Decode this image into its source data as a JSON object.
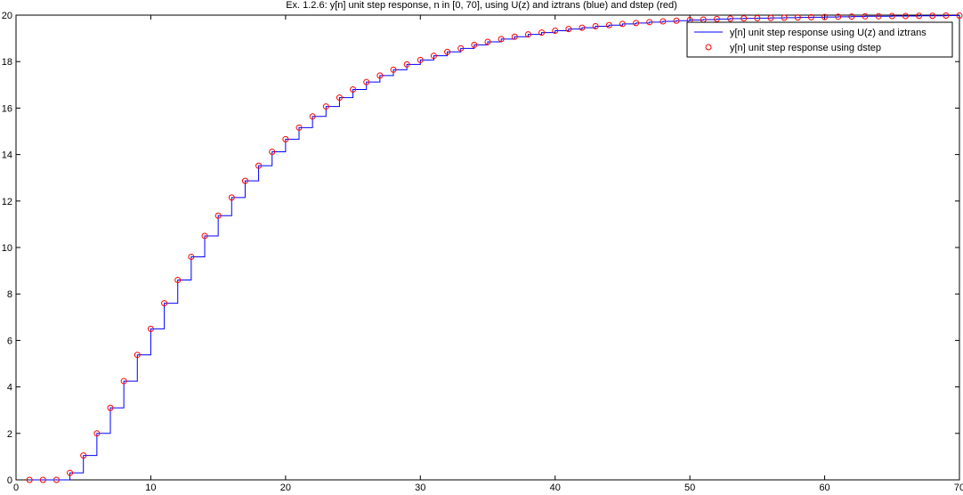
{
  "chart_data": {
    "type": "line",
    "title": "Ex. 1.2.6: y[n] unit step response, n in [0, 70], using U(z) and iztrans (blue) and dstep (red)",
    "xlabel": "",
    "ylabel": "",
    "xlim": [
      0,
      70
    ],
    "ylim": [
      0,
      20
    ],
    "xticks": [
      "0",
      "10",
      "20",
      "30",
      "40",
      "50",
      "60",
      "70"
    ],
    "yticks": [
      "0",
      "2",
      "4",
      "6",
      "8",
      "10",
      "12",
      "14",
      "16",
      "18",
      "20"
    ],
    "grid": false,
    "legend_position": "top-right",
    "series": [
      {
        "name": "y[n] unit step response using U(z) and iztrans",
        "style": "stairs",
        "color": "#0000ff",
        "x": [
          1,
          2,
          3,
          4,
          5,
          6,
          7,
          8,
          9,
          10,
          11,
          12,
          13,
          14,
          15,
          16,
          17,
          18,
          19,
          20,
          21,
          22,
          23,
          24,
          25,
          26,
          27,
          28,
          29,
          30,
          31,
          32,
          33,
          34,
          35,
          36,
          37,
          38,
          39,
          40,
          41,
          42,
          43,
          44,
          45,
          46,
          47,
          48,
          49,
          50,
          51,
          52,
          53,
          54,
          55,
          56,
          57,
          58,
          59,
          60,
          61,
          62,
          63,
          64,
          65,
          66,
          67,
          68,
          69,
          70
        ],
        "values": [
          0,
          0,
          0,
          0.3,
          1.05,
          2.0,
          3.1,
          4.25,
          5.38,
          6.5,
          7.6,
          8.6,
          9.6,
          10.5,
          11.37,
          12.15,
          12.87,
          13.52,
          14.12,
          14.66,
          15.16,
          15.64,
          16.07,
          16.45,
          16.8,
          17.12,
          17.4,
          17.65,
          17.88,
          18.07,
          18.25,
          18.42,
          18.57,
          18.72,
          18.85,
          18.97,
          19.07,
          19.17,
          19.25,
          19.33,
          19.4,
          19.46,
          19.52,
          19.57,
          19.62,
          19.66,
          19.7,
          19.73,
          19.76,
          19.79,
          19.81,
          19.83,
          19.85,
          19.86,
          19.87,
          19.88,
          19.89,
          19.9,
          19.91,
          19.92,
          19.93,
          19.94,
          19.95,
          19.95,
          19.96,
          19.96,
          19.97,
          19.97,
          19.98,
          19.98
        ]
      },
      {
        "name": "y[n] unit step response using dstep",
        "style": "markers",
        "color": "#ff0000",
        "x": [
          1,
          2,
          3,
          4,
          5,
          6,
          7,
          8,
          9,
          10,
          11,
          12,
          13,
          14,
          15,
          16,
          17,
          18,
          19,
          20,
          21,
          22,
          23,
          24,
          25,
          26,
          27,
          28,
          29,
          30,
          31,
          32,
          33,
          34,
          35,
          36,
          37,
          38,
          39,
          40,
          41,
          42,
          43,
          44,
          45,
          46,
          47,
          48,
          49,
          50,
          51,
          52,
          53,
          54,
          55,
          56,
          57,
          58,
          59,
          60,
          61,
          62,
          63,
          64,
          65,
          66,
          67,
          68,
          69,
          70
        ],
        "values": [
          0,
          0,
          0,
          0.3,
          1.05,
          2.0,
          3.1,
          4.25,
          5.38,
          6.5,
          7.6,
          8.6,
          9.6,
          10.5,
          11.37,
          12.15,
          12.87,
          13.52,
          14.12,
          14.66,
          15.16,
          15.64,
          16.07,
          16.45,
          16.8,
          17.12,
          17.4,
          17.65,
          17.88,
          18.07,
          18.25,
          18.42,
          18.57,
          18.72,
          18.85,
          18.97,
          19.07,
          19.17,
          19.25,
          19.33,
          19.4,
          19.46,
          19.52,
          19.57,
          19.62,
          19.66,
          19.7,
          19.73,
          19.76,
          19.79,
          19.81,
          19.83,
          19.85,
          19.86,
          19.87,
          19.88,
          19.89,
          19.9,
          19.91,
          19.92,
          19.93,
          19.94,
          19.95,
          19.95,
          19.96,
          19.96,
          19.97,
          19.97,
          19.98,
          19.98
        ]
      }
    ]
  }
}
